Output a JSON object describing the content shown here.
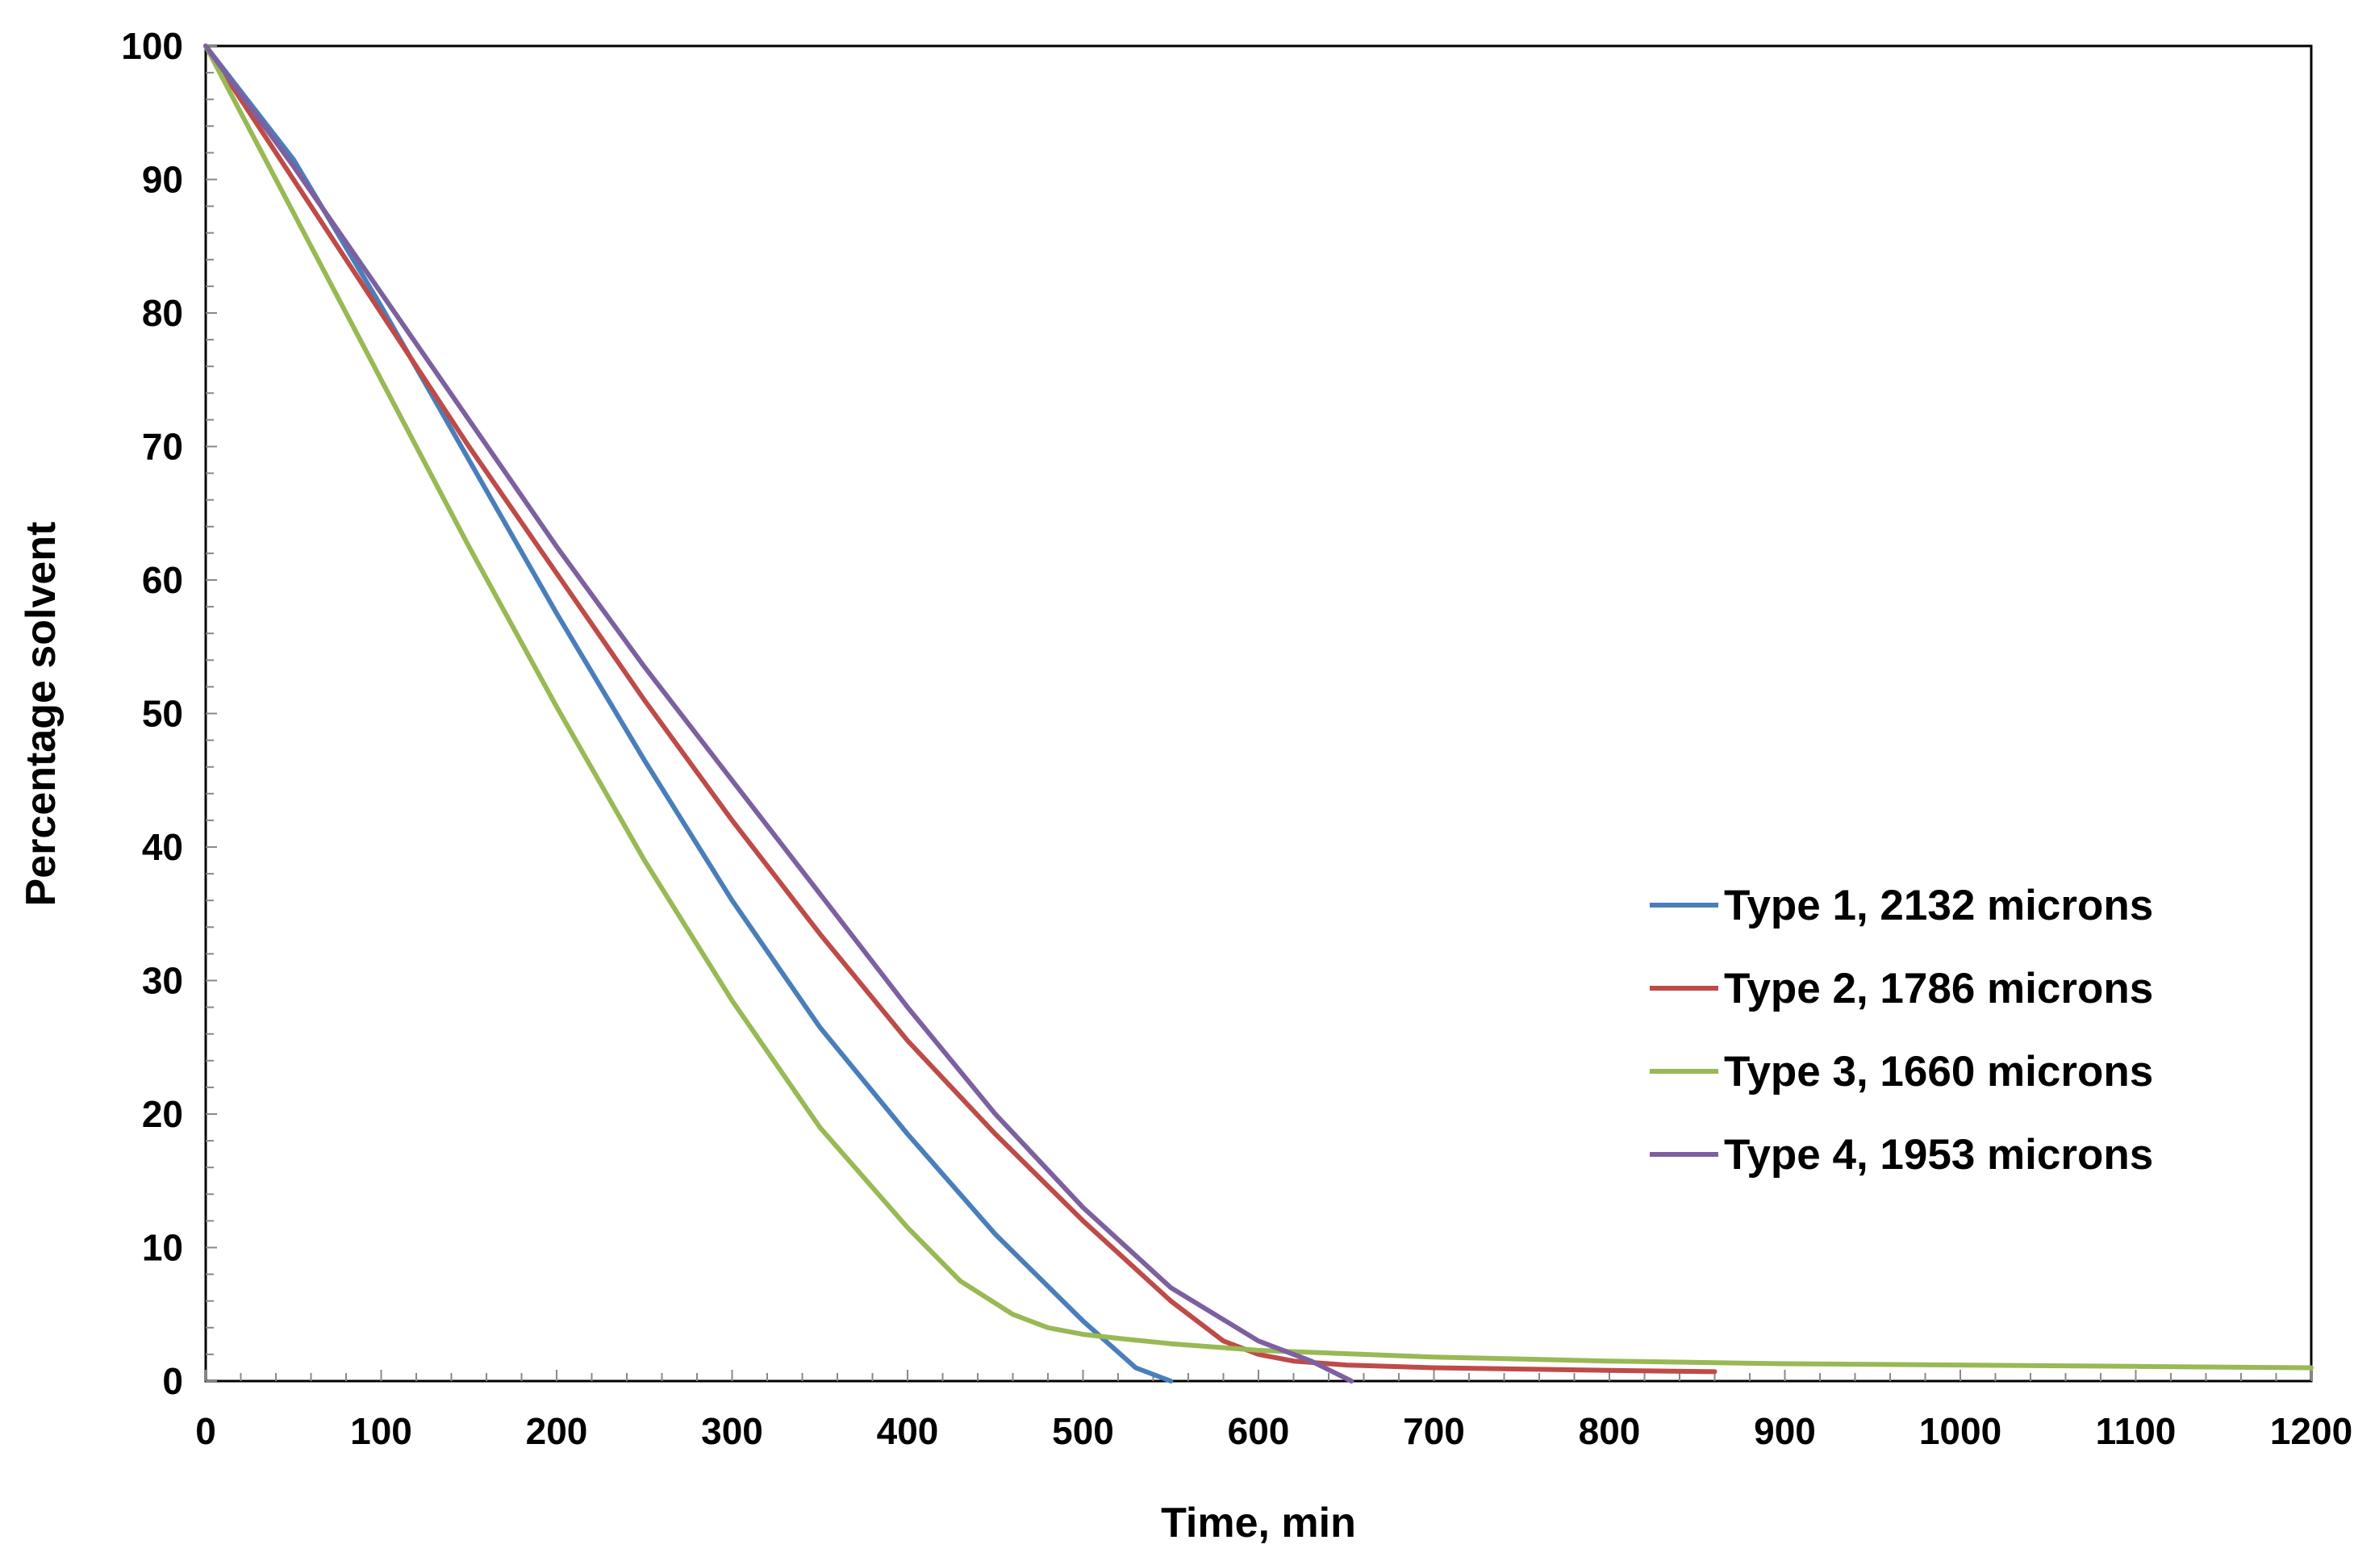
{
  "chart_data": {
    "type": "line",
    "title": "",
    "xlabel": "Time, min",
    "ylabel": "Percentage solvent",
    "xlim": [
      0,
      1200
    ],
    "ylim": [
      0,
      100
    ],
    "x_ticks": [
      0,
      100,
      200,
      300,
      400,
      500,
      600,
      700,
      800,
      900,
      1000,
      1100,
      1200
    ],
    "y_ticks": [
      0,
      10,
      20,
      30,
      40,
      50,
      60,
      70,
      80,
      90,
      100
    ],
    "grid": false,
    "legend_position": "right",
    "series": [
      {
        "name": "Type 1, 2132 microns",
        "color": "#4a7ebb",
        "x": [
          0,
          50,
          100,
          150,
          200,
          250,
          300,
          350,
          400,
          450,
          500,
          530,
          550
        ],
        "y": [
          100,
          91.5,
          80.5,
          69,
          57.5,
          46.5,
          36,
          26.5,
          18.5,
          11,
          4.5,
          1,
          0
        ]
      },
      {
        "name": "Type 2, 1786 microns",
        "color": "#be4b48",
        "x": [
          0,
          50,
          100,
          150,
          200,
          250,
          300,
          350,
          400,
          450,
          500,
          550,
          580,
          600,
          620,
          650,
          700,
          750,
          800,
          860
        ],
        "y": [
          100,
          90,
          80,
          70,
          60.5,
          51,
          42,
          33.5,
          25.5,
          18.5,
          12,
          6,
          3,
          2,
          1.5,
          1.2,
          1,
          0.9,
          0.8,
          0.7
        ]
      },
      {
        "name": "Type 3, 1660 microns",
        "color": "#98b954",
        "x": [
          0,
          50,
          100,
          150,
          200,
          250,
          300,
          350,
          400,
          430,
          460,
          480,
          500,
          520,
          550,
          600,
          700,
          800,
          900,
          1000,
          1100,
          1200
        ],
        "y": [
          100,
          87.5,
          75,
          62.5,
          50.5,
          39,
          28.5,
          19,
          11.5,
          7.5,
          5,
          4,
          3.5,
          3.2,
          2.8,
          2.3,
          1.8,
          1.5,
          1.3,
          1.2,
          1.1,
          1
        ]
      },
      {
        "name": "Type 4, 1953 microns",
        "color": "#7d60a0",
        "x": [
          0,
          50,
          100,
          150,
          200,
          250,
          300,
          350,
          400,
          450,
          500,
          550,
          600,
          630,
          653
        ],
        "y": [
          100,
          91,
          81.5,
          72,
          62.5,
          53.5,
          45,
          36.5,
          28,
          20,
          13,
          7,
          3,
          1.5,
          0
        ]
      }
    ]
  }
}
